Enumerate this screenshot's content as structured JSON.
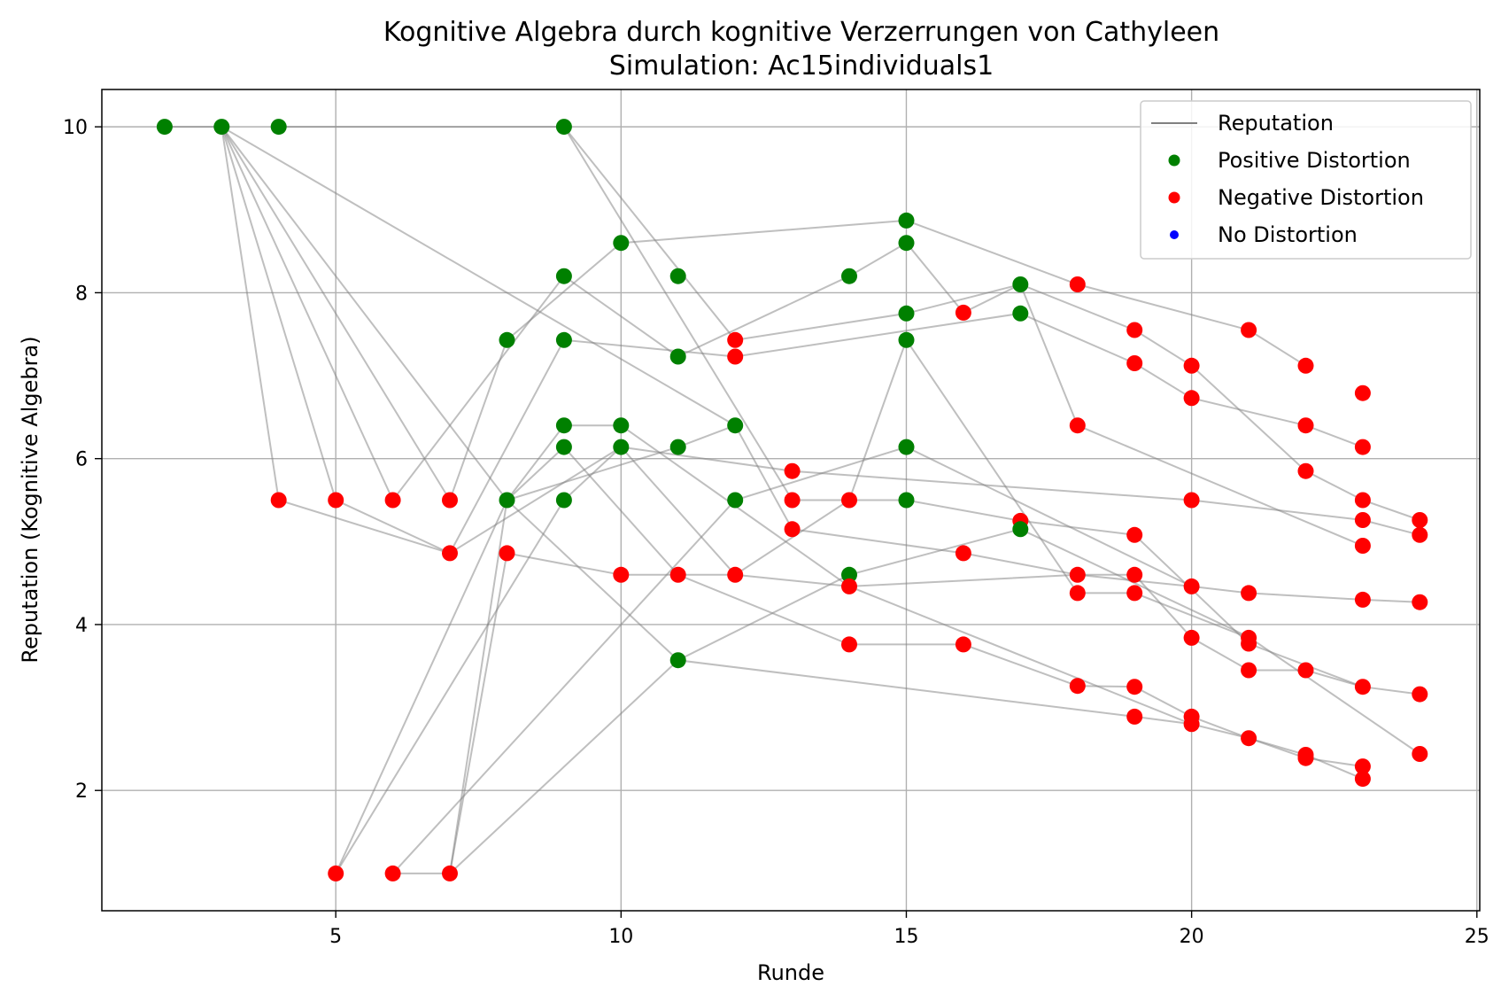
{
  "chart_data": {
    "type": "scatter",
    "title": "Kognitive Algebra durch kognitive Verzerrungen von Cathyleen",
    "subtitle": "Simulation: Ac15individuals1",
    "xlabel": "Runde",
    "ylabel": "Reputation (Kognitive Algebra)",
    "xlim": [
      0.9,
      25.05
    ],
    "ylim": [
      0.55,
      10.45
    ],
    "xticks": [
      5,
      10,
      15,
      20,
      25
    ],
    "yticks": [
      2,
      4,
      6,
      8,
      10
    ],
    "grid": true,
    "legend_position": "top-right",
    "legend": [
      {
        "label": "Reputation",
        "kind": "line",
        "color": "#808080"
      },
      {
        "label": "Positive Distortion",
        "kind": "point",
        "color": "#008000"
      },
      {
        "label": "Negative Distortion",
        "kind": "point",
        "color": "#ff0000"
      },
      {
        "label": "No Distortion",
        "kind": "point",
        "color": "#0000ff"
      }
    ],
    "colors": {
      "positive": "#008000",
      "negative": "#ff0000",
      "none": "#0000ff",
      "line": "#808080"
    },
    "series": [
      {
        "values": [
          [
            2,
            10
          ],
          [
            3,
            10
          ],
          [
            8,
            5.5
          ],
          [
            11,
            3.57
          ],
          [
            14,
            4.6
          ],
          [
            17,
            5.15
          ],
          [
            21,
            3.85
          ],
          [
            24,
            2.44
          ]
        ]
      },
      {
        "values": [
          [
            3,
            10
          ],
          [
            4,
            5.5
          ],
          [
            7,
            4.86
          ],
          [
            9,
            7.43
          ],
          [
            12,
            7.23
          ],
          [
            17,
            7.75
          ],
          [
            19,
            7.15
          ],
          [
            20,
            6.73
          ],
          [
            22,
            6.4
          ],
          [
            23,
            6.14
          ]
        ]
      },
      {
        "values": [
          [
            3,
            10
          ],
          [
            5,
            5.5
          ],
          [
            7,
            4.86
          ],
          [
            10,
            6.14
          ],
          [
            13,
            5.85
          ],
          [
            20,
            5.5
          ],
          [
            23,
            5.26
          ],
          [
            24,
            5.08
          ]
        ]
      },
      {
        "values": [
          [
            3,
            10
          ],
          [
            6,
            5.5
          ],
          [
            9,
            8.2
          ],
          [
            11,
            7.23
          ],
          [
            14,
            8.2
          ],
          [
            15,
            8.6
          ],
          [
            16,
            7.76
          ],
          [
            17,
            8.1
          ],
          [
            19,
            7.55
          ],
          [
            20,
            7.12
          ],
          [
            22,
            5.85
          ],
          [
            23,
            5.5
          ],
          [
            24,
            5.26
          ]
        ]
      },
      {
        "values": [
          [
            3,
            10
          ],
          [
            7,
            5.5
          ],
          [
            8,
            7.43
          ],
          [
            10,
            8.6
          ],
          [
            15,
            8.87
          ],
          [
            18,
            8.1
          ],
          [
            21,
            7.55
          ],
          [
            22,
            7.12
          ]
        ]
      },
      {
        "values": [
          [
            3,
            10
          ],
          [
            12,
            6.4
          ],
          [
            13,
            5.15
          ],
          [
            16,
            4.86
          ],
          [
            18,
            4.6
          ],
          [
            20,
            4.46
          ],
          [
            21,
            4.38
          ],
          [
            23,
            4.3
          ],
          [
            24,
            4.27
          ]
        ]
      },
      {
        "values": [
          [
            4,
            10
          ],
          [
            9,
            10
          ],
          [
            12,
            7.43
          ],
          [
            15,
            7.75
          ],
          [
            17,
            8.1
          ],
          [
            18,
            6.4
          ],
          [
            23,
            4.95
          ]
        ]
      },
      {
        "values": [
          [
            9,
            10
          ],
          [
            13,
            5.5
          ],
          [
            15,
            5.5
          ],
          [
            17,
            5.25
          ],
          [
            19,
            5.08
          ],
          [
            21,
            3.77
          ],
          [
            23,
            3.25
          ],
          [
            24,
            3.16
          ]
        ]
      },
      {
        "values": [
          [
            5,
            1
          ],
          [
            8,
            5.5
          ],
          [
            9,
            6.4
          ],
          [
            10,
            6.4
          ],
          [
            14,
            4.46
          ],
          [
            18,
            4.6
          ],
          [
            19,
            4.6
          ],
          [
            20,
            3.84
          ],
          [
            21,
            3.45
          ],
          [
            22,
            3.45
          ],
          [
            23,
            3.25
          ]
        ]
      },
      {
        "values": [
          [
            6,
            1
          ],
          [
            7,
            1
          ],
          [
            8,
            5.5
          ],
          [
            9,
            6.14
          ],
          [
            11,
            4.6
          ],
          [
            14,
            3.76
          ],
          [
            16,
            3.76
          ],
          [
            18,
            3.26
          ],
          [
            19,
            3.25
          ],
          [
            20,
            2.89
          ],
          [
            21,
            2.63
          ],
          [
            22,
            2.39
          ],
          [
            23,
            2.29
          ]
        ]
      },
      {
        "values": [
          [
            5,
            1
          ],
          [
            9,
            5.5
          ],
          [
            10,
            6.14
          ],
          [
            12,
            4.6
          ],
          [
            14,
            5.5
          ],
          [
            15,
            7.43
          ],
          [
            18,
            4.38
          ],
          [
            19,
            4.38
          ],
          [
            21,
            3.84
          ]
        ]
      },
      {
        "values": [
          [
            7,
            1
          ],
          [
            8,
            4.86
          ],
          [
            10,
            4.6
          ],
          [
            11,
            4.6
          ],
          [
            12,
            4.6
          ],
          [
            14,
            4.46
          ],
          [
            20,
            2.8
          ],
          [
            21,
            2.63
          ],
          [
            22,
            2.43
          ],
          [
            23,
            2.14
          ]
        ]
      },
      {
        "values": [
          [
            6,
            1
          ],
          [
            12,
            5.5
          ],
          [
            15,
            6.14
          ],
          [
            20,
            4.46
          ]
        ]
      },
      {
        "values": [
          [
            7,
            1
          ],
          [
            11,
            3.57
          ],
          [
            19,
            2.89
          ],
          [
            20,
            2.8
          ]
        ]
      },
      {
        "values": [
          [
            8,
            5.5
          ],
          [
            11,
            6.14
          ],
          [
            12,
            6.4
          ]
        ]
      }
    ],
    "points": [
      {
        "x": 2,
        "y": 10,
        "d": "positive"
      },
      {
        "x": 3,
        "y": 10,
        "d": "positive"
      },
      {
        "x": 4,
        "y": 10,
        "d": "positive"
      },
      {
        "x": 9,
        "y": 10,
        "d": "positive"
      },
      {
        "x": 4,
        "y": 5.5,
        "d": "negative"
      },
      {
        "x": 5,
        "y": 5.5,
        "d": "negative"
      },
      {
        "x": 6,
        "y": 5.5,
        "d": "negative"
      },
      {
        "x": 7,
        "y": 5.5,
        "d": "negative"
      },
      {
        "x": 7,
        "y": 4.86,
        "d": "negative"
      },
      {
        "x": 8,
        "y": 4.86,
        "d": "negative"
      },
      {
        "x": 5,
        "y": 1,
        "d": "negative"
      },
      {
        "x": 6,
        "y": 1,
        "d": "negative"
      },
      {
        "x": 7,
        "y": 1,
        "d": "negative"
      },
      {
        "x": 8,
        "y": 5.5,
        "d": "positive"
      },
      {
        "x": 8,
        "y": 7.43,
        "d": "positive"
      },
      {
        "x": 9,
        "y": 8.2,
        "d": "positive"
      },
      {
        "x": 9,
        "y": 7.43,
        "d": "positive"
      },
      {
        "x": 9,
        "y": 6.4,
        "d": "positive"
      },
      {
        "x": 9,
        "y": 6.14,
        "d": "positive"
      },
      {
        "x": 9,
        "y": 5.5,
        "d": "positive"
      },
      {
        "x": 10,
        "y": 8.6,
        "d": "positive"
      },
      {
        "x": 10,
        "y": 6.4,
        "d": "positive"
      },
      {
        "x": 10,
        "y": 6.14,
        "d": "positive"
      },
      {
        "x": 10,
        "y": 4.6,
        "d": "negative"
      },
      {
        "x": 11,
        "y": 8.2,
        "d": "positive"
      },
      {
        "x": 11,
        "y": 7.23,
        "d": "positive"
      },
      {
        "x": 11,
        "y": 6.14,
        "d": "positive"
      },
      {
        "x": 11,
        "y": 4.6,
        "d": "negative"
      },
      {
        "x": 11,
        "y": 3.57,
        "d": "positive"
      },
      {
        "x": 12,
        "y": 7.43,
        "d": "negative"
      },
      {
        "x": 12,
        "y": 7.23,
        "d": "negative"
      },
      {
        "x": 12,
        "y": 6.4,
        "d": "positive"
      },
      {
        "x": 12,
        "y": 5.5,
        "d": "positive"
      },
      {
        "x": 12,
        "y": 4.6,
        "d": "negative"
      },
      {
        "x": 13,
        "y": 5.85,
        "d": "negative"
      },
      {
        "x": 13,
        "y": 5.5,
        "d": "negative"
      },
      {
        "x": 13,
        "y": 5.15,
        "d": "negative"
      },
      {
        "x": 14,
        "y": 8.2,
        "d": "positive"
      },
      {
        "x": 14,
        "y": 5.5,
        "d": "negative"
      },
      {
        "x": 14,
        "y": 4.6,
        "d": "positive"
      },
      {
        "x": 14,
        "y": 4.46,
        "d": "negative"
      },
      {
        "x": 14,
        "y": 3.76,
        "d": "negative"
      },
      {
        "x": 15,
        "y": 8.87,
        "d": "positive"
      },
      {
        "x": 15,
        "y": 8.6,
        "d": "positive"
      },
      {
        "x": 15,
        "y": 7.75,
        "d": "positive"
      },
      {
        "x": 15,
        "y": 7.43,
        "d": "positive"
      },
      {
        "x": 15,
        "y": 6.14,
        "d": "positive"
      },
      {
        "x": 15,
        "y": 5.5,
        "d": "positive"
      },
      {
        "x": 16,
        "y": 7.76,
        "d": "negative"
      },
      {
        "x": 16,
        "y": 4.86,
        "d": "negative"
      },
      {
        "x": 16,
        "y": 3.76,
        "d": "negative"
      },
      {
        "x": 17,
        "y": 8.1,
        "d": "positive"
      },
      {
        "x": 17,
        "y": 7.75,
        "d": "positive"
      },
      {
        "x": 17,
        "y": 5.25,
        "d": "negative"
      },
      {
        "x": 17,
        "y": 5.15,
        "d": "positive"
      },
      {
        "x": 18,
        "y": 8.1,
        "d": "negative"
      },
      {
        "x": 18,
        "y": 6.4,
        "d": "negative"
      },
      {
        "x": 18,
        "y": 4.6,
        "d": "negative"
      },
      {
        "x": 18,
        "y": 4.38,
        "d": "negative"
      },
      {
        "x": 18,
        "y": 3.26,
        "d": "negative"
      },
      {
        "x": 19,
        "y": 7.55,
        "d": "negative"
      },
      {
        "x": 19,
        "y": 7.15,
        "d": "negative"
      },
      {
        "x": 19,
        "y": 5.08,
        "d": "negative"
      },
      {
        "x": 19,
        "y": 4.6,
        "d": "negative"
      },
      {
        "x": 19,
        "y": 4.38,
        "d": "negative"
      },
      {
        "x": 19,
        "y": 3.25,
        "d": "negative"
      },
      {
        "x": 19,
        "y": 2.89,
        "d": "negative"
      },
      {
        "x": 20,
        "y": 7.12,
        "d": "negative"
      },
      {
        "x": 20,
        "y": 6.73,
        "d": "negative"
      },
      {
        "x": 20,
        "y": 5.5,
        "d": "negative"
      },
      {
        "x": 20,
        "y": 4.46,
        "d": "negative"
      },
      {
        "x": 20,
        "y": 3.84,
        "d": "negative"
      },
      {
        "x": 20,
        "y": 2.89,
        "d": "negative"
      },
      {
        "x": 20,
        "y": 2.8,
        "d": "negative"
      },
      {
        "x": 21,
        "y": 7.55,
        "d": "negative"
      },
      {
        "x": 21,
        "y": 4.38,
        "d": "negative"
      },
      {
        "x": 21,
        "y": 3.84,
        "d": "negative"
      },
      {
        "x": 21,
        "y": 3.77,
        "d": "negative"
      },
      {
        "x": 21,
        "y": 3.45,
        "d": "negative"
      },
      {
        "x": 21,
        "y": 2.63,
        "d": "negative"
      },
      {
        "x": 22,
        "y": 7.12,
        "d": "negative"
      },
      {
        "x": 22,
        "y": 6.4,
        "d": "negative"
      },
      {
        "x": 22,
        "y": 5.85,
        "d": "negative"
      },
      {
        "x": 22,
        "y": 3.45,
        "d": "negative"
      },
      {
        "x": 22,
        "y": 2.43,
        "d": "negative"
      },
      {
        "x": 22,
        "y": 2.39,
        "d": "negative"
      },
      {
        "x": 23,
        "y": 6.79,
        "d": "negative"
      },
      {
        "x": 23,
        "y": 6.14,
        "d": "negative"
      },
      {
        "x": 23,
        "y": 5.5,
        "d": "negative"
      },
      {
        "x": 23,
        "y": 5.26,
        "d": "negative"
      },
      {
        "x": 23,
        "y": 4.95,
        "d": "negative"
      },
      {
        "x": 23,
        "y": 4.3,
        "d": "negative"
      },
      {
        "x": 23,
        "y": 3.25,
        "d": "negative"
      },
      {
        "x": 23,
        "y": 2.29,
        "d": "negative"
      },
      {
        "x": 23,
        "y": 2.14,
        "d": "negative"
      },
      {
        "x": 24,
        "y": 5.26,
        "d": "negative"
      },
      {
        "x": 24,
        "y": 5.08,
        "d": "negative"
      },
      {
        "x": 24,
        "y": 4.27,
        "d": "negative"
      },
      {
        "x": 24,
        "y": 3.16,
        "d": "negative"
      },
      {
        "x": 24,
        "y": 2.44,
        "d": "negative"
      }
    ]
  }
}
